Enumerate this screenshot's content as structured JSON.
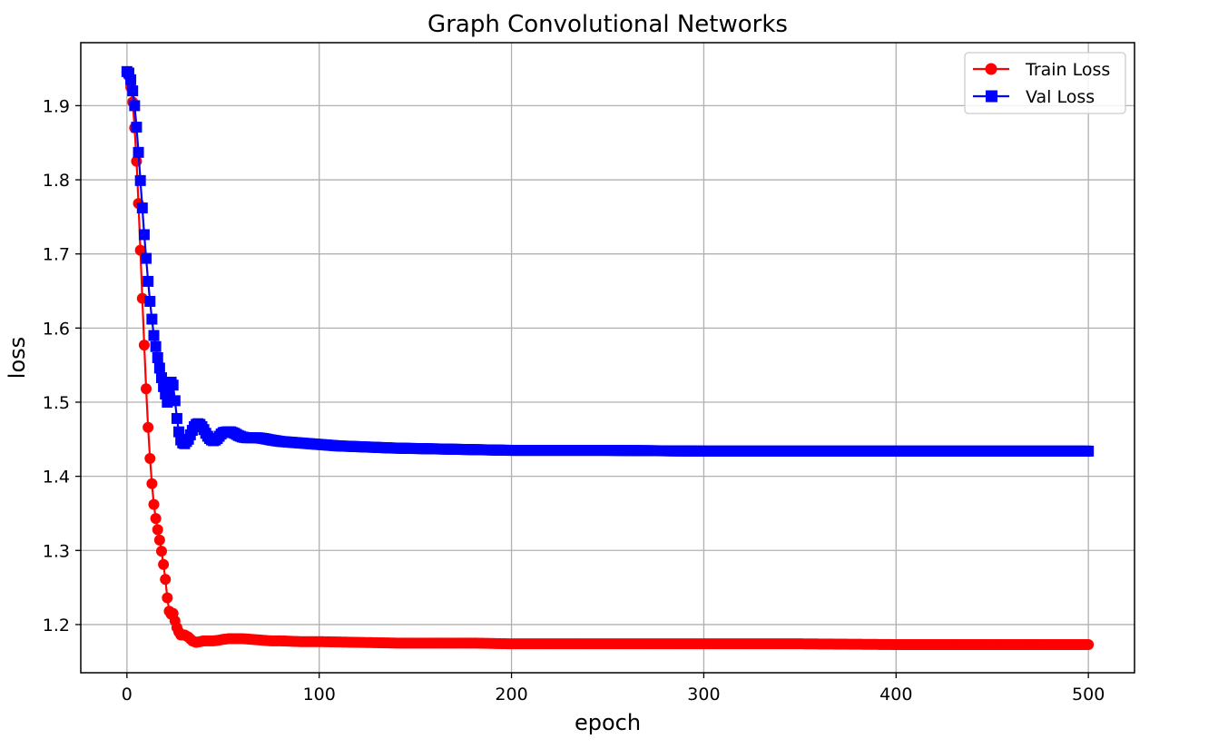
{
  "chart_data": {
    "type": "line",
    "title": "Graph Convolutional Networks",
    "xlabel": "epoch",
    "ylabel": "loss",
    "xlim": [
      -24,
      524
    ],
    "ylim": [
      1.135,
      1.985
    ],
    "xticks": [
      0,
      100,
      200,
      300,
      400,
      500
    ],
    "yticks": [
      1.2,
      1.3,
      1.4,
      1.5,
      1.6,
      1.7,
      1.8,
      1.9
    ],
    "grid": true,
    "legend_position": "top-right",
    "series": [
      {
        "name": "Train Loss",
        "color": "#ff0000",
        "marker": "circle",
        "points": [
          [
            0,
            1.945
          ],
          [
            1,
            1.94
          ],
          [
            2,
            1.925
          ],
          [
            3,
            1.905
          ],
          [
            4,
            1.87
          ],
          [
            5,
            1.825
          ],
          [
            6,
            1.768
          ],
          [
            7,
            1.705
          ],
          [
            8,
            1.64
          ],
          [
            9,
            1.577
          ],
          [
            10,
            1.518
          ],
          [
            11,
            1.466
          ],
          [
            12,
            1.424
          ],
          [
            13,
            1.39
          ],
          [
            14,
            1.362
          ],
          [
            15,
            1.343
          ],
          [
            16,
            1.328
          ],
          [
            17,
            1.314
          ],
          [
            18,
            1.299
          ],
          [
            19,
            1.281
          ],
          [
            20,
            1.261
          ],
          [
            21,
            1.236
          ],
          [
            22,
            1.218
          ],
          [
            23,
            1.214
          ],
          [
            24,
            1.215
          ],
          [
            25,
            1.205
          ],
          [
            26,
            1.196
          ],
          [
            27,
            1.19
          ],
          [
            28,
            1.186
          ],
          [
            30,
            1.186
          ],
          [
            32,
            1.183
          ],
          [
            34,
            1.178
          ],
          [
            36,
            1.176
          ],
          [
            38,
            1.177
          ],
          [
            40,
            1.178
          ],
          [
            42,
            1.178
          ],
          [
            45,
            1.178
          ],
          [
            48,
            1.179
          ],
          [
            50,
            1.18
          ],
          [
            53,
            1.181
          ],
          [
            56,
            1.181
          ],
          [
            60,
            1.181
          ],
          [
            65,
            1.18
          ],
          [
            70,
            1.179
          ],
          [
            75,
            1.178
          ],
          [
            80,
            1.178
          ],
          [
            90,
            1.177
          ],
          [
            100,
            1.177
          ],
          [
            120,
            1.176
          ],
          [
            140,
            1.175
          ],
          [
            160,
            1.175
          ],
          [
            180,
            1.175
          ],
          [
            200,
            1.174
          ],
          [
            250,
            1.174
          ],
          [
            300,
            1.174
          ],
          [
            350,
            1.174
          ],
          [
            400,
            1.173
          ],
          [
            450,
            1.173
          ],
          [
            500,
            1.173
          ]
        ]
      },
      {
        "name": "Val Loss",
        "color": "#0000ff",
        "marker": "square",
        "points": [
          [
            0,
            1.946
          ],
          [
            1,
            1.944
          ],
          [
            2,
            1.935
          ],
          [
            3,
            1.92
          ],
          [
            4,
            1.9
          ],
          [
            5,
            1.871
          ],
          [
            6,
            1.837
          ],
          [
            7,
            1.799
          ],
          [
            8,
            1.762
          ],
          [
            9,
            1.726
          ],
          [
            10,
            1.694
          ],
          [
            11,
            1.663
          ],
          [
            12,
            1.636
          ],
          [
            13,
            1.612
          ],
          [
            14,
            1.59
          ],
          [
            15,
            1.575
          ],
          [
            16,
            1.56
          ],
          [
            17,
            1.546
          ],
          [
            18,
            1.533
          ],
          [
            19,
            1.521
          ],
          [
            20,
            1.511
          ],
          [
            21,
            1.5
          ],
          [
            22,
            1.515
          ],
          [
            23,
            1.527
          ],
          [
            24,
            1.523
          ],
          [
            25,
            1.502
          ],
          [
            26,
            1.478
          ],
          [
            27,
            1.46
          ],
          [
            28,
            1.449
          ],
          [
            29,
            1.445
          ],
          [
            30,
            1.444
          ],
          [
            31,
            1.447
          ],
          [
            32,
            1.45
          ],
          [
            33,
            1.456
          ],
          [
            34,
            1.462
          ],
          [
            35,
            1.467
          ],
          [
            36,
            1.47
          ],
          [
            37,
            1.471
          ],
          [
            38,
            1.47
          ],
          [
            39,
            1.467
          ],
          [
            40,
            1.463
          ],
          [
            41,
            1.458
          ],
          [
            42,
            1.454
          ],
          [
            43,
            1.451
          ],
          [
            44,
            1.449
          ],
          [
            45,
            1.448
          ],
          [
            46,
            1.449
          ],
          [
            47,
            1.451
          ],
          [
            48,
            1.454
          ],
          [
            49,
            1.457
          ],
          [
            50,
            1.459
          ],
          [
            52,
            1.46
          ],
          [
            54,
            1.46
          ],
          [
            56,
            1.458
          ],
          [
            58,
            1.455
          ],
          [
            60,
            1.453
          ],
          [
            62,
            1.452
          ],
          [
            65,
            1.452
          ],
          [
            68,
            1.452
          ],
          [
            71,
            1.451
          ],
          [
            75,
            1.449
          ],
          [
            80,
            1.447
          ],
          [
            85,
            1.446
          ],
          [
            90,
            1.445
          ],
          [
            100,
            1.443
          ],
          [
            110,
            1.441
          ],
          [
            120,
            1.44
          ],
          [
            140,
            1.438
          ],
          [
            160,
            1.437
          ],
          [
            180,
            1.436
          ],
          [
            200,
            1.435
          ],
          [
            250,
            1.435
          ],
          [
            300,
            1.434
          ],
          [
            350,
            1.434
          ],
          [
            400,
            1.434
          ],
          [
            450,
            1.434
          ],
          [
            500,
            1.434
          ]
        ]
      }
    ]
  }
}
